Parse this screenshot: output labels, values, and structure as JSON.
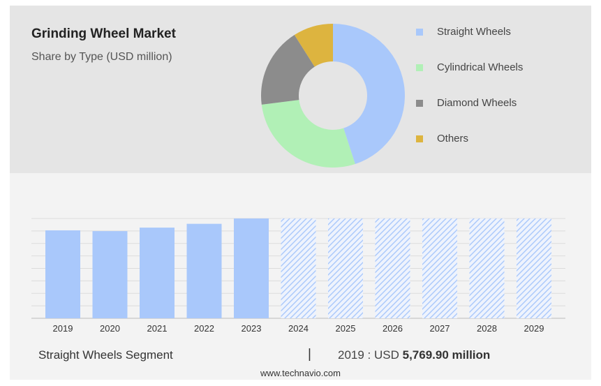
{
  "header": {
    "title": "Grinding Wheel Market",
    "subtitle": "Share by Type (USD million)"
  },
  "chart_data": [
    {
      "type": "pie",
      "variant": "donut",
      "categories": [
        "Straight Wheels",
        "Cylindrical Wheels",
        "Diamond Wheels",
        "Others"
      ],
      "values": [
        45,
        28,
        18,
        9
      ],
      "colors": [
        "#a9c8fb",
        "#b1f0b6",
        "#8c8c8c",
        "#ddb43f"
      ],
      "legend": "right"
    },
    {
      "type": "bar",
      "categories": [
        "2019",
        "2020",
        "2021",
        "2022",
        "2023",
        "2024",
        "2025",
        "2026",
        "2027",
        "2028",
        "2029"
      ],
      "values": [
        5769.9,
        5720,
        5950,
        6200,
        6550,
        6550,
        6550,
        6550,
        6550,
        6550,
        6550
      ],
      "forecast_from": "2024",
      "ylim": [
        0,
        8000
      ],
      "grid": true,
      "colors": {
        "actual": "#a9c8fb",
        "forecast_hatch": "#a9c8fb"
      }
    }
  ],
  "footer": {
    "segment": "Straight Wheels Segment",
    "separator": "|",
    "value_prefix": "2019 : USD",
    "value": "5,769.90 million",
    "source": "www.technavio.com"
  }
}
